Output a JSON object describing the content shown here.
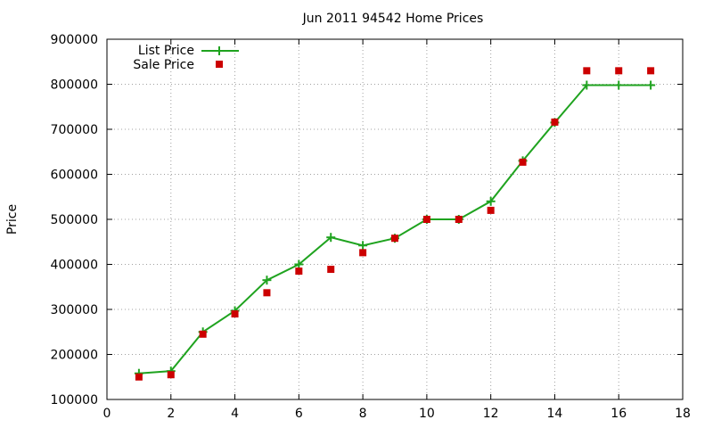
{
  "chart_data": {
    "type": "line",
    "title": "Jun 2011 94542 Home Prices",
    "xlabel": "",
    "ylabel": "Price",
    "xlim": [
      0,
      18
    ],
    "ylim": [
      100000,
      900000
    ],
    "x_ticks": [
      "0",
      "2",
      "4",
      "6",
      "8",
      "10",
      "12",
      "14",
      "16",
      "18"
    ],
    "y_ticks": [
      "100000",
      "200000",
      "300000",
      "400000",
      "500000",
      "600000",
      "700000",
      "800000",
      "900000"
    ],
    "grid": true,
    "legend_position": "top-left",
    "series": [
      {
        "name": "List Price",
        "style": "line+points",
        "marker": "plus",
        "color": "#1fa31f",
        "x": [
          1,
          2,
          3,
          4,
          5,
          6,
          7,
          8,
          9,
          10,
          11,
          12,
          13,
          14,
          15,
          16,
          17
        ],
        "y": [
          158000,
          163000,
          250000,
          297000,
          365000,
          400000,
          460000,
          442000,
          458000,
          500000,
          500000,
          540000,
          630000,
          715000,
          798000,
          798000,
          798000
        ]
      },
      {
        "name": "Sale Price",
        "style": "points",
        "marker": "square",
        "color": "#cc0000",
        "x": [
          1,
          2,
          3,
          4,
          5,
          6,
          7,
          8,
          9,
          10,
          11,
          12,
          13,
          14,
          15,
          16,
          17
        ],
        "y": [
          150000,
          155000,
          245000,
          290000,
          337000,
          385000,
          389000,
          426000,
          458000,
          500000,
          500000,
          520000,
          627000,
          716000,
          830000,
          830000,
          830000
        ]
      }
    ]
  }
}
